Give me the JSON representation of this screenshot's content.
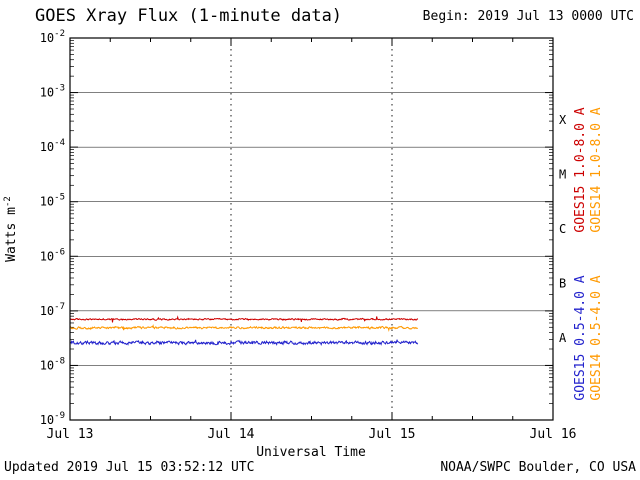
{
  "header": {
    "title": "GOES Xray Flux (1-minute data)",
    "begin_label": "Begin: 2019 Jul 13 0000 UTC"
  },
  "footer": {
    "updated": "Updated 2019 Jul 15 03:52:12 UTC",
    "source": "NOAA/SWPC Boulder, CO USA"
  },
  "chart_data": {
    "type": "line",
    "title": "GOES Xray Flux (1-minute data)",
    "xlabel": "Universal Time",
    "ylabel": "Watts m-2",
    "ylabel_base": "Watts m",
    "ylabel_exponent": "-2",
    "x_ticks": [
      "Jul 13",
      "Jul 14",
      "Jul 15",
      "Jul 16"
    ],
    "x_range_days": [
      0,
      3
    ],
    "y_exponent_range": [
      -9,
      -2
    ],
    "y_tick_exponents": [
      -2,
      -3,
      -4,
      -5,
      -6,
      -7,
      -8,
      -9
    ],
    "grid": {
      "horizontal": "solid",
      "vertical": "dotted",
      "vertical_days": [
        1,
        2
      ]
    },
    "flux_classes": [
      {
        "letter": "X",
        "center_exponent": -3.5
      },
      {
        "letter": "M",
        "center_exponent": -4.5
      },
      {
        "letter": "C",
        "center_exponent": -5.5
      },
      {
        "letter": "B",
        "center_exponent": -6.5
      },
      {
        "letter": "A",
        "center_exponent": -7.5
      }
    ],
    "series": [
      {
        "name": "GOES15 1.0-8.0 A",
        "color": "#cc0000",
        "mean_flux": 7e-08,
        "noise_log10": 0.022,
        "start_day": 0,
        "end_day": 2.161
      },
      {
        "name": "GOES14 1.0-8.0 A",
        "color": "#ff9900",
        "mean_flux": 4.9e-08,
        "noise_log10": 0.032,
        "start_day": 0,
        "end_day": 2.161
      },
      {
        "name": "GOES15 0.5-4.0 A",
        "color": "#2222cc",
        "mean_flux": 2.6e-08,
        "noise_log10": 0.05,
        "start_day": 0,
        "end_day": 2.161
      }
    ],
    "right_labels": [
      {
        "text": "GOES15 1.0-8.0 A",
        "color": "#cc0000"
      },
      {
        "text": "GOES14 1.0-8.0 A",
        "color": "#ff9900"
      },
      {
        "text": "GOES15 0.5-4.0 A",
        "color": "#2222cc"
      },
      {
        "text": "GOES14 0.5-4.0 A",
        "color": "#ff9900"
      }
    ]
  }
}
